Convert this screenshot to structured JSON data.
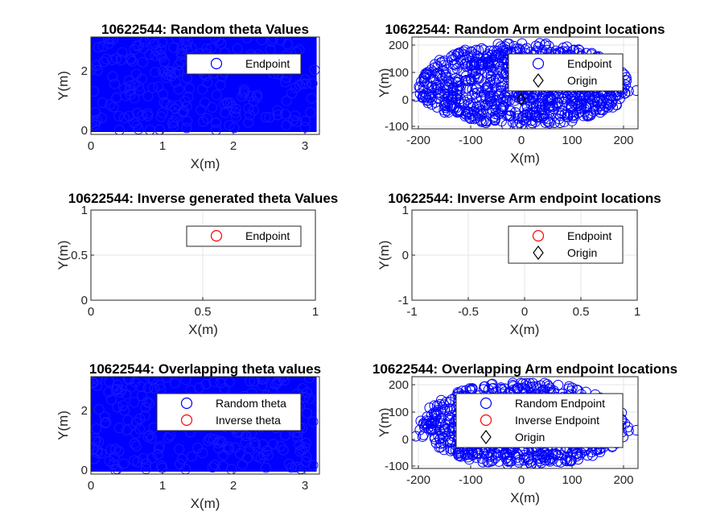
{
  "figure": {
    "colors": {
      "random": "#0000ff",
      "inverse": "#ff0000",
      "origin": "#000000",
      "grid": "#e6e6e6",
      "axis": "#262626"
    },
    "marker_icons": {
      "random": "circle-marker-icon",
      "inverse": "circle-marker-icon",
      "origin": "diamond-marker-icon"
    }
  },
  "chart_data": [
    {
      "id": "random-theta",
      "type": "scatter",
      "title": "10622544: Random theta Values",
      "xlabel": "X(m)",
      "ylabel": "Y(m)",
      "xlim": [
        -0.1,
        3.22
      ],
      "ylim": [
        -0.1,
        3.22
      ],
      "xticks": [
        "0",
        "1",
        "2",
        "3"
      ],
      "yticks": [
        "0",
        "2"
      ],
      "grid": true,
      "legend_position": "top-right",
      "series": [
        {
          "name": "Endpoint",
          "color": "#0000ff",
          "marker": "circle",
          "x_range": [
            0,
            3.1416
          ],
          "y_range": [
            0,
            3.1416
          ],
          "distribution": "dense-uniform"
        }
      ]
    },
    {
      "id": "random-arm",
      "type": "scatter",
      "title": "10622544: Random Arm endpoint locations",
      "xlabel": "X(m)",
      "ylabel": "Y(m)",
      "xlim": [
        -225,
        240
      ],
      "ylim": [
        -115,
        220
      ],
      "xticks": [
        "-200",
        "-100",
        "0",
        "100",
        "200"
      ],
      "yticks": [
        "-100",
        "0",
        "100",
        "200"
      ],
      "grid": true,
      "legend_position": "top-right",
      "series": [
        {
          "name": "Endpoint",
          "color": "#0000ff",
          "marker": "circle",
          "x_range": [
            -210,
            225
          ],
          "y_range": [
            -110,
            210
          ],
          "distribution": "dense-elliptical"
        },
        {
          "name": "Origin",
          "color": "#000000",
          "marker": "diamond",
          "x": [
            0
          ],
          "y": [
            0
          ]
        }
      ]
    },
    {
      "id": "inverse-theta",
      "type": "scatter",
      "title": "10622544: Inverse generated theta Values",
      "xlabel": "X(m)",
      "ylabel": "Y(m)",
      "xlim": [
        0,
        1
      ],
      "ylim": [
        0,
        1
      ],
      "xticks": [
        "0",
        "0.5",
        "1"
      ],
      "yticks": [
        "0",
        "0.5",
        "1"
      ],
      "grid": true,
      "legend_position": "top-right",
      "series": [
        {
          "name": "Endpoint",
          "color": "#ff0000",
          "marker": "circle",
          "x": [],
          "y": []
        }
      ]
    },
    {
      "id": "inverse-arm",
      "type": "scatter",
      "title": "10622544: Inverse Arm endpoint locations",
      "xlabel": "X(m)",
      "ylabel": "Y(m)",
      "xlim": [
        -1,
        1
      ],
      "ylim": [
        -1,
        1
      ],
      "xticks": [
        "-1",
        "-0.5",
        "0",
        "0.5",
        "1"
      ],
      "yticks": [
        "-1",
        "0",
        "1"
      ],
      "grid": true,
      "legend_position": "top-right",
      "series": [
        {
          "name": "Endpoint",
          "color": "#ff0000",
          "marker": "circle",
          "x": [],
          "y": []
        },
        {
          "name": "Origin",
          "color": "#000000",
          "marker": "diamond",
          "x": [],
          "y": []
        }
      ]
    },
    {
      "id": "overlap-theta",
      "type": "scatter",
      "title": "10622544: Overlapping theta values",
      "xlabel": "X(m)",
      "ylabel": "Y(m)",
      "xlim": [
        -0.1,
        3.22
      ],
      "ylim": [
        -0.1,
        3.22
      ],
      "xticks": [
        "0",
        "1",
        "2",
        "3"
      ],
      "yticks": [
        "0",
        "2"
      ],
      "grid": true,
      "legend_position": "top-right",
      "series": [
        {
          "name": "Random theta",
          "color": "#0000ff",
          "marker": "circle",
          "x_range": [
            0,
            3.1416
          ],
          "y_range": [
            0,
            3.1416
          ],
          "distribution": "dense-uniform"
        },
        {
          "name": "Inverse theta",
          "color": "#ff0000",
          "marker": "circle",
          "x": [],
          "y": []
        }
      ]
    },
    {
      "id": "overlap-arm",
      "type": "scatter",
      "title": "10622544: Overlapping Arm endpoint locations",
      "xlabel": "X(m)",
      "ylabel": "Y(m)",
      "xlim": [
        -225,
        240
      ],
      "ylim": [
        -115,
        220
      ],
      "xticks": [
        "-200",
        "-100",
        "0",
        "100",
        "200"
      ],
      "yticks": [
        "-100",
        "0",
        "100",
        "200"
      ],
      "grid": true,
      "legend_position": "top-right",
      "series": [
        {
          "name": "Random Endpoint",
          "color": "#0000ff",
          "marker": "circle",
          "x_range": [
            -210,
            225
          ],
          "y_range": [
            -110,
            210
          ],
          "distribution": "dense-elliptical"
        },
        {
          "name": "Inverse Endpoint",
          "color": "#ff0000",
          "marker": "circle",
          "x": [],
          "y": []
        },
        {
          "name": "Origin",
          "color": "#000000",
          "marker": "diamond",
          "x": [],
          "y": []
        }
      ]
    }
  ]
}
